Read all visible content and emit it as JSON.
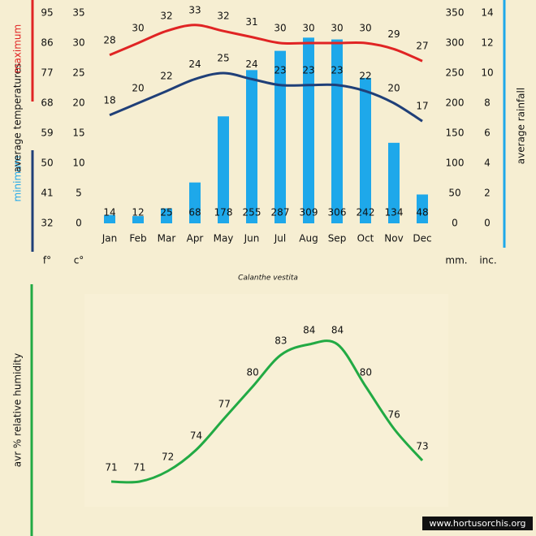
{
  "chart_data": [
    {
      "type": "bar",
      "subtitle": "Calanthe vestita",
      "categories": [
        "Jan",
        "Feb",
        "Mar",
        "Apr",
        "May",
        "Jun",
        "Jul",
        "Aug",
        "Sep",
        "Oct",
        "Nov",
        "Dec"
      ],
      "series": [
        {
          "type": "bar",
          "axis": "y2",
          "color": "#1ea8ea",
          "values": [
            14,
            12,
            25,
            68,
            178,
            255,
            287,
            309,
            306,
            242,
            134,
            48
          ]
        },
        {
          "type": "line",
          "name": "maximum",
          "color": "#e02424",
          "values": [
            28,
            30,
            32,
            33,
            32,
            31,
            30,
            30,
            30,
            30,
            29,
            27
          ]
        },
        {
          "type": "line",
          "name": "minimum",
          "color": "#1f3f78",
          "values": [
            18,
            20,
            22,
            24,
            25,
            24,
            23,
            23,
            23,
            22,
            20,
            17
          ]
        }
      ],
      "ylabel": "average temperatures",
      "y2label": "average rainfall",
      "ylim": [
        0,
        35
      ],
      "yticks": [
        0,
        5,
        10,
        15,
        20,
        25,
        30,
        35
      ],
      "yunit": "c°",
      "yflim": [
        32,
        95
      ],
      "yfticks": [
        32,
        41,
        50,
        59,
        68,
        77,
        86,
        95
      ],
      "yfunit": "f°",
      "y2lim": [
        0,
        350
      ],
      "y2ticks": [
        0,
        50,
        100,
        150,
        200,
        250,
        300,
        350
      ],
      "y2unit": "mm.",
      "y2inlim": [
        0,
        14
      ],
      "y2inticks": [
        0,
        2,
        4,
        6,
        8,
        10,
        12,
        14
      ],
      "y2inunit": "inc.",
      "axis_color": "#1ea8ea"
    },
    {
      "type": "line",
      "ylabel": "avr % relative humidity",
      "series": [
        {
          "color": "#22aa44",
          "values": [
            71,
            71,
            72,
            74,
            77,
            80,
            83,
            84,
            84,
            80,
            76,
            73
          ]
        }
      ],
      "credit": "www.hortusorchis.org"
    }
  ]
}
